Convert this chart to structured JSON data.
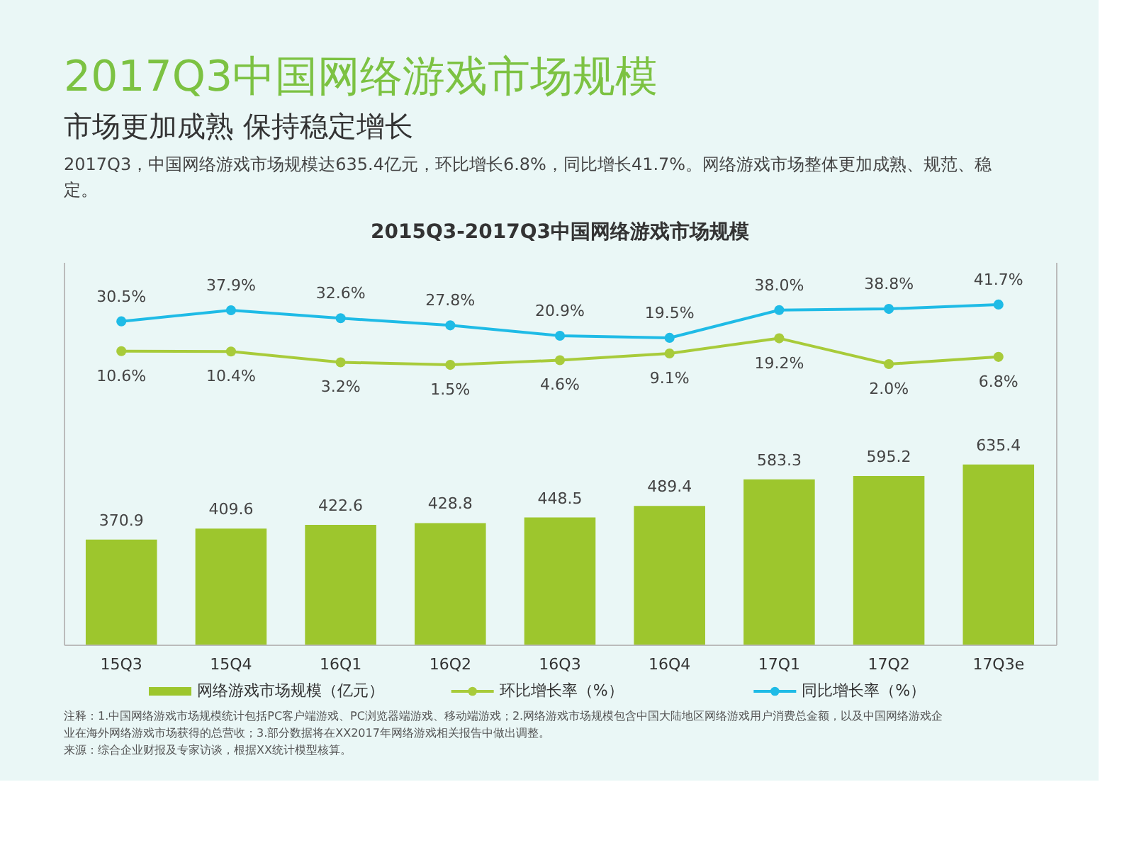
{
  "chart_data": {
    "type": "bar",
    "title": "2017Q3中国网络游戏市场规模",
    "subtitle": "市场更加成熟 保持稳定增长",
    "annotations": [
      "2017Q3，中国网络游戏市场规模达635.4亿元，环比增长6.8%，同比增长41.7%。网络游戏市场整体更加成熟、规范、稳定。",
      "2015Q3-2017Q3中国网络游戏市场规模",
      "注释：1.中国网络游戏市场规模统计包括PC客户端游戏、PC浏览器端游戏、移动端游戏；2.网络游戏市场规模包含中国大陆地区网络游戏用户消费总金额，以及中国网络游戏企业在海外网络游戏市场获得的总营收；3.部分数据将在XX2017年网络游戏相关报告中做出调整。",
      "来源：综合企业财报及专家访谈，根据XX统计模型核算。"
    ],
    "categories": [
      "15Q3",
      "15Q4",
      "16Q1",
      "16Q2",
      "16Q3",
      "16Q4",
      "17Q1",
      "17Q2",
      "17Q3e"
    ],
    "series": [
      {
        "name": "网络游戏市场规模（亿元）",
        "type": "bar",
        "color": "#9dc62d",
        "values": [
          370.9,
          409.6,
          422.6,
          428.8,
          448.5,
          489.4,
          583.3,
          595.2,
          635.4
        ],
        "value_labels": [
          "370.9",
          "409.6",
          "422.6",
          "428.8",
          "448.5",
          "489.4",
          "583.3",
          "595.2",
          "635.4"
        ]
      },
      {
        "name": "环比增长率（%）",
        "type": "line",
        "axis": "y2",
        "color": "#a8cb3a",
        "values": [
          10.6,
          10.4,
          3.2,
          1.5,
          4.6,
          9.1,
          19.2,
          2.0,
          6.8
        ],
        "value_labels": [
          "10.6%",
          "10.4%",
          "3.2%",
          "1.5%",
          "4.6%",
          "9.1%",
          "19.2%",
          "2.0%",
          "6.8%"
        ]
      },
      {
        "name": "同比增长率（%）",
        "type": "line",
        "axis": "y2",
        "color": "#1fbbe6",
        "values": [
          30.5,
          37.9,
          32.6,
          27.8,
          20.9,
          19.5,
          38.0,
          38.8,
          41.7
        ],
        "value_labels": [
          "30.5%",
          "37.9%",
          "32.6%",
          "27.8%",
          "20.9%",
          "19.5%",
          "38.0%",
          "38.8%",
          "41.7%"
        ]
      }
    ],
    "ylim": [
      0,
      1350
    ],
    "y2lim": [
      -185,
      70
    ],
    "grid": false,
    "tick_labels": "x",
    "marker": "circle",
    "legend": "bottom"
  }
}
